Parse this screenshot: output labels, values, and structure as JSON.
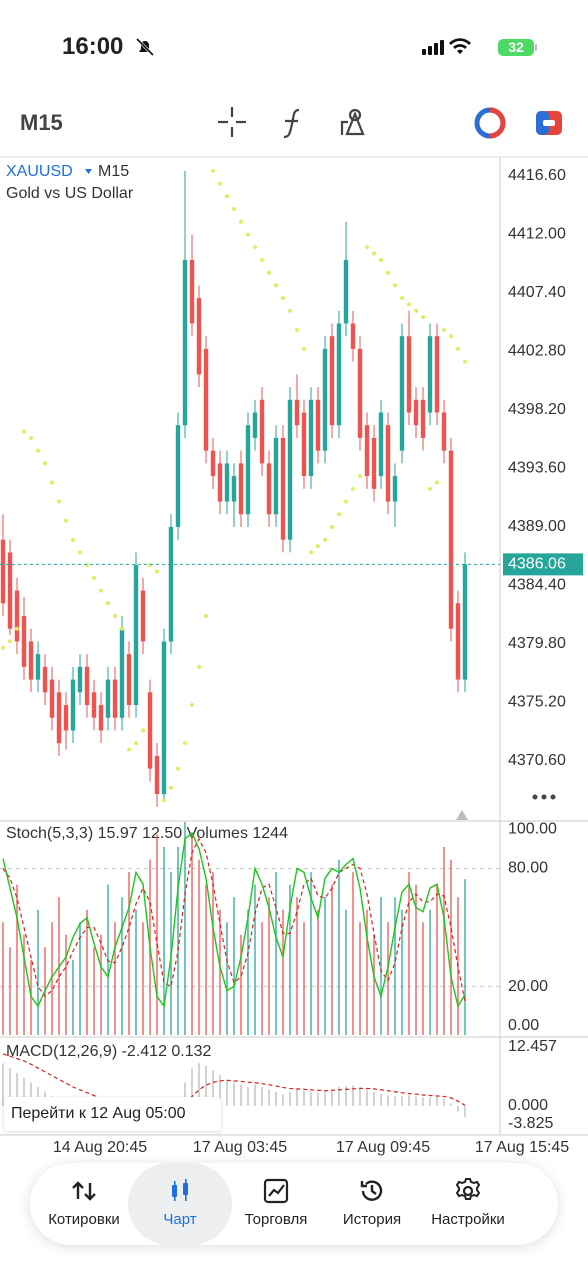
{
  "status_bar": {
    "time": "16:00",
    "battery": "32"
  },
  "toolbar": {
    "timeframe": "M15"
  },
  "chart_data": {
    "type": "candlestick",
    "symbol": "XAUUSD",
    "timeframe": "M15",
    "description": "Gold vs US Dollar",
    "colors": {
      "up": "#26a69a",
      "down": "#ef5350"
    },
    "candles": [
      [
        4388,
        4390,
        4382,
        4383
      ],
      [
        4387,
        4388,
        4380.5,
        4381
      ],
      [
        4384,
        4385,
        4379,
        4380
      ],
      [
        4382,
        4383.5,
        4377,
        4378
      ],
      [
        4380,
        4381,
        4376,
        4377
      ],
      [
        4377,
        4380,
        4376,
        4379
      ],
      [
        4378,
        4379,
        4375,
        4376
      ],
      [
        4377,
        4378,
        4373,
        4374
      ],
      [
        4376,
        4377,
        4371,
        4372
      ],
      [
        4375,
        4376,
        4371.5,
        4373
      ],
      [
        4373,
        4378,
        4372,
        4377
      ],
      [
        4376,
        4379,
        4375,
        4378
      ],
      [
        4378,
        4379,
        4374,
        4375
      ],
      [
        4376,
        4377,
        4373,
        4374
      ],
      [
        4375,
        4376,
        4372,
        4373
      ],
      [
        4374,
        4378,
        4373,
        4377
      ],
      [
        4377,
        4378,
        4373,
        4374
      ],
      [
        4374,
        4382,
        4373,
        4381
      ],
      [
        4379,
        4380,
        4374,
        4375
      ],
      [
        4375,
        4387,
        4374,
        4386
      ],
      [
        4384,
        4385,
        4379,
        4380
      ],
      [
        4376,
        4377,
        4369,
        4370
      ],
      [
        4371,
        4372,
        4367,
        4368
      ],
      [
        4368,
        4381,
        4367.5,
        4380
      ],
      [
        4380,
        4390,
        4379,
        4389
      ],
      [
        4389,
        4398,
        4388,
        4397
      ],
      [
        4397,
        4417,
        4396,
        4410
      ],
      [
        4410,
        4412,
        4404,
        4405
      ],
      [
        4407,
        4408,
        4400,
        4401
      ],
      [
        4403,
        4404,
        4394,
        4395
      ],
      [
        4395,
        4396,
        4392,
        4393
      ],
      [
        4394,
        4395,
        4390,
        4391
      ],
      [
        4391,
        4395,
        4390,
        4394
      ],
      [
        4391,
        4394,
        4389,
        4393
      ],
      [
        4394,
        4395,
        4389,
        4390
      ],
      [
        4390,
        4398,
        4389,
        4397
      ],
      [
        4396,
        4399,
        4395,
        4398
      ],
      [
        4399,
        4400,
        4393,
        4394
      ],
      [
        4394,
        4395,
        4389,
        4390
      ],
      [
        4390,
        4397,
        4389,
        4396
      ],
      [
        4396,
        4397,
        4387,
        4388
      ],
      [
        4388,
        4400,
        4387,
        4399
      ],
      [
        4399,
        4401,
        4396,
        4397
      ],
      [
        4398,
        4399,
        4392,
        4393
      ],
      [
        4393,
        4400,
        4392,
        4399
      ],
      [
        4399,
        4400,
        4394,
        4395
      ],
      [
        4395,
        4404,
        4394,
        4403
      ],
      [
        4404,
        4405,
        4396,
        4397
      ],
      [
        4397,
        4406,
        4396,
        4405
      ],
      [
        4405,
        4413,
        4404,
        4410
      ],
      [
        4405,
        4406,
        4402,
        4403
      ],
      [
        4403,
        4404,
        4395,
        4396
      ],
      [
        4397,
        4398,
        4392,
        4393
      ],
      [
        4396,
        4397,
        4391,
        4392
      ],
      [
        4393,
        4399,
        4392,
        4398
      ],
      [
        4397,
        4398,
        4390,
        4391
      ],
      [
        4391,
        4394,
        4389,
        4393
      ],
      [
        4395,
        4405,
        4394,
        4404
      ],
      [
        4404,
        4406,
        4397,
        4398
      ],
      [
        4399,
        4400,
        4396,
        4397
      ],
      [
        4399,
        4400,
        4395,
        4396
      ],
      [
        4398,
        4405,
        4397,
        4404
      ],
      [
        4404,
        4405,
        4397,
        4398
      ],
      [
        4398,
        4399,
        4394,
        4395
      ],
      [
        4395,
        4396,
        4380,
        4381
      ],
      [
        4383,
        4384,
        4376,
        4377
      ],
      [
        4377,
        4387,
        4376,
        4386.06
      ]
    ],
    "ylim": [
      4365.96,
      4418.09
    ],
    "yticks": [
      {
        "value": 4416.6,
        "label": "4416.60"
      },
      {
        "value": 4412,
        "label": "4412.00"
      },
      {
        "value": 4407.4,
        "label": "4407.40"
      },
      {
        "value": 4402.8,
        "label": "4402.80"
      },
      {
        "value": 4398.2,
        "label": "4398.20"
      },
      {
        "value": 4393.6,
        "label": "4393.60"
      },
      {
        "value": 4389,
        "label": "4389.00"
      },
      {
        "value": 4384.4,
        "label": "4384.40"
      },
      {
        "value": 4379.8,
        "label": "4379.80"
      },
      {
        "value": 4375.2,
        "label": "4375.20"
      },
      {
        "value": 4370.6,
        "label": "4370.60"
      }
    ],
    "current_price": 4386.06,
    "sar": {
      "color": "#e3ec5e",
      "values": [
        4379.5,
        4380,
        4381,
        4396.5,
        4396,
        4395,
        4394,
        4392.5,
        4391,
        4389.5,
        4388,
        4387,
        4386,
        4385,
        4384,
        4383,
        4382,
        4381,
        4371.5,
        4372,
        4373,
        4386,
        4385.5,
        4367.5,
        4368.5,
        4370,
        4372,
        4375,
        4378,
        4382,
        4417,
        4416,
        4415,
        4414,
        4413,
        4412,
        4411,
        4410,
        4409,
        4408,
        4407,
        4406,
        4404.5,
        4403,
        4387,
        4387.5,
        4388,
        4389,
        4390,
        4391,
        4392,
        4393,
        4411,
        4410.5,
        4410,
        4409,
        4408,
        4407,
        4406.5,
        4406,
        4405.5,
        4392,
        4392.5,
        4404.5,
        4404,
        4403,
        4402
      ]
    },
    "xticks": [
      "14 Aug 20:45",
      "17 Aug 03:45",
      "17 Aug 09:45",
      "17 Aug 15:45"
    ],
    "stochastic": {
      "label": "Stoch(5,3,3) 15.97 12.50 Volumes 1244",
      "ylim": [
        -4.6,
        103.6
      ],
      "yticks": [
        {
          "value": 100,
          "label": "100.00"
        },
        {
          "value": 80,
          "label": "80.00"
        },
        {
          "value": 20,
          "label": "20.00"
        },
        {
          "value": 0,
          "label": "0.00"
        }
      ],
      "k_color": "#19c819",
      "d_color": "#d9201b",
      "k": [
        85,
        70,
        55,
        35,
        15,
        10,
        18,
        25,
        30,
        35,
        45,
        52,
        55,
        42,
        30,
        25,
        40,
        50,
        60,
        78,
        72,
        40,
        15,
        10,
        35,
        70,
        95,
        98,
        90,
        75,
        50,
        30,
        18,
        20,
        35,
        55,
        80,
        72,
        60,
        45,
        35,
        60,
        80,
        78,
        65,
        55,
        75,
        80,
        78,
        82,
        85,
        70,
        45,
        25,
        15,
        30,
        50,
        68,
        72,
        60,
        58,
        70,
        72,
        55,
        25,
        10,
        15.97
      ],
      "d": [
        80,
        75,
        65,
        50,
        35,
        20,
        15,
        18,
        25,
        30,
        38,
        45,
        50,
        50,
        42,
        33,
        32,
        40,
        50,
        62,
        70,
        63,
        42,
        22,
        20,
        38,
        67,
        88,
        95,
        88,
        72,
        52,
        33,
        22,
        25,
        37,
        57,
        70,
        72,
        60,
        47,
        47,
        58,
        72,
        75,
        66,
        65,
        70,
        78,
        80,
        82,
        80,
        67,
        47,
        28,
        23,
        32,
        50,
        63,
        67,
        63,
        63,
        67,
        66,
        50,
        30,
        12.5
      ],
      "volume_ylim": [
        0,
        1700
      ],
      "volumes": [
        900,
        700,
        1200,
        800,
        600,
        1000,
        700,
        900,
        1100,
        800,
        600,
        900,
        1000,
        700,
        800,
        1200,
        900,
        1100,
        1300,
        1000,
        900,
        1400,
        1600,
        1500,
        1300,
        1500,
        1700,
        1600,
        1400,
        1200,
        1300,
        1000,
        900,
        1100,
        800,
        1000,
        1200,
        900,
        1100,
        1300,
        1000,
        1200,
        1100,
        900,
        1300,
        1000,
        1100,
        1200,
        1400,
        1000,
        1300,
        900,
        1000,
        800,
        1100,
        900,
        1100,
        1000,
        1300,
        1200,
        900,
        1000,
        1200,
        1500,
        1400,
        1100,
        1244
      ]
    },
    "macd": {
      "label": "MACD(12,26,9) -2.412 0.132",
      "ylim": [
        -3.825,
        12.457
      ],
      "yticks": [
        12.457,
        {
          "value": 0,
          "label": "0.000"
        },
        -3.825
      ],
      "histogram_color": "#c8c8c8",
      "signal_color": "#d9201b",
      "histogram": [
        9,
        8,
        7,
        6,
        5,
        4,
        3,
        2,
        1.5,
        1,
        0.5,
        0.3,
        0.2,
        0,
        -0.5,
        -1,
        -0.8,
        -0.5,
        0,
        0.5,
        0,
        -1,
        -2,
        -2.5,
        -1.5,
        1,
        5,
        8,
        9,
        8.5,
        7.5,
        6.5,
        5.5,
        5,
        4.5,
        4,
        4.5,
        4,
        3.5,
        3,
        2.5,
        3,
        3.5,
        3.2,
        3,
        2.8,
        3,
        3.5,
        4,
        4.2,
        4.3,
        4,
        3.5,
        3,
        2.5,
        2.2,
        2,
        2,
        2.2,
        2,
        1.8,
        1.8,
        1.9,
        1.6,
        0.5,
        -1.2,
        -2.412
      ],
      "signal": [
        11,
        10.5,
        10,
        9.5,
        8.8,
        8,
        7.2,
        6.4,
        5.6,
        4.8,
        4,
        3.4,
        2.8,
        2.2,
        1.6,
        1,
        0.6,
        0.3,
        0.2,
        0.2,
        0.2,
        0,
        -0.4,
        -0.8,
        -1,
        -0.6,
        0.5,
        2,
        3.4,
        4.4,
        5,
        5.3,
        5.4,
        5.3,
        5.2,
        5,
        4.9,
        4.7,
        4.5,
        4.2,
        3.9,
        3.7,
        3.6,
        3.5,
        3.4,
        3.3,
        3.2,
        3.3,
        3.4,
        3.5,
        3.6,
        3.7,
        3.7,
        3.6,
        3.4,
        3.2,
        3,
        2.8,
        2.6,
        2.5,
        2.3,
        2.2,
        2.1,
        2,
        1.7,
        1,
        0.132
      ]
    }
  },
  "tooltip": "Перейти к 12 Aug 05:00",
  "nav": {
    "active": 1,
    "items": [
      "Котировки",
      "Чарт",
      "Торговля",
      "История",
      "Настройки"
    ]
  }
}
